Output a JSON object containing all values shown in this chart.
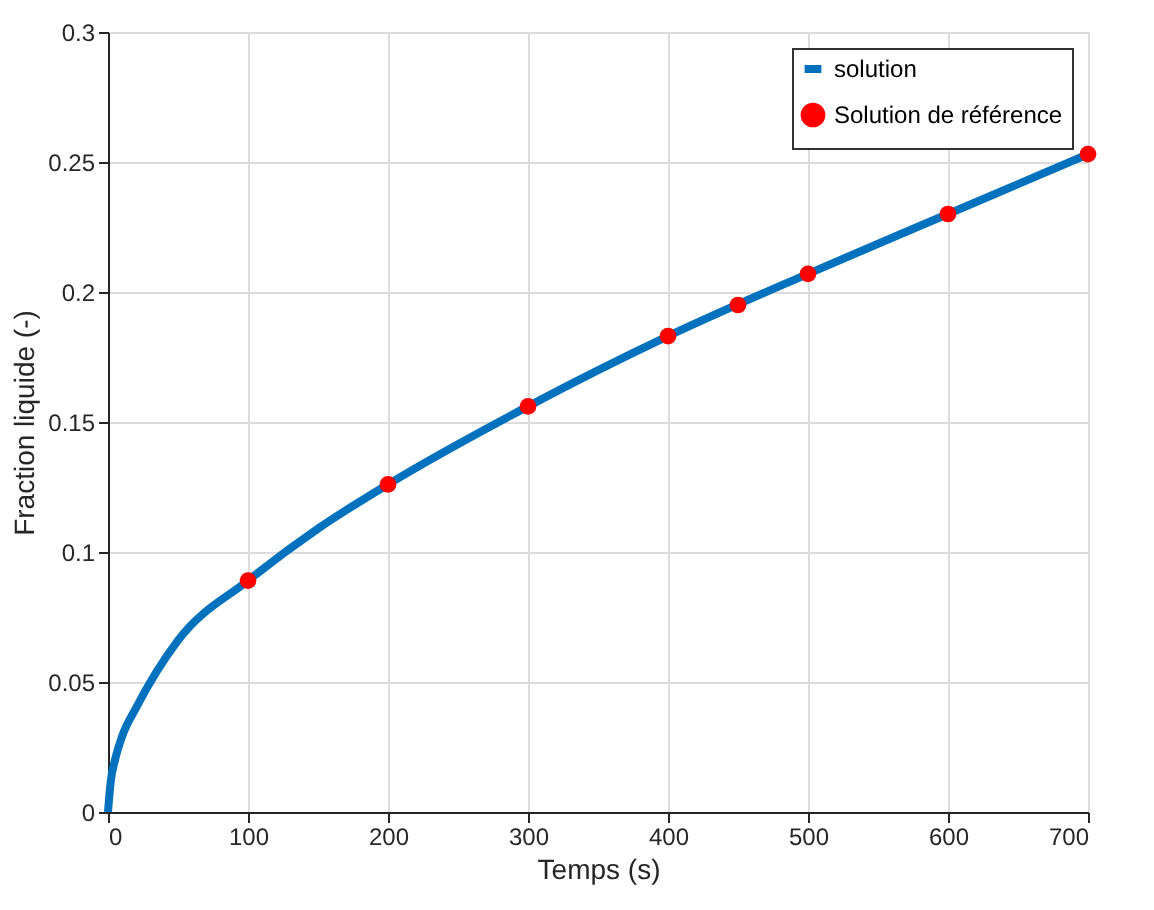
{
  "chart_data": {
    "type": "line",
    "xlabel": "Temps (s)",
    "ylabel": "Fraction liquide (-)",
    "xlim": [
      0,
      700
    ],
    "ylim": [
      0,
      0.3
    ],
    "xticks": [
      0,
      100,
      200,
      300,
      400,
      500,
      600,
      700
    ],
    "yticks": [
      0,
      0.05,
      0.1,
      0.15,
      0.2,
      0.25,
      0.3
    ],
    "grid": true,
    "legend": "top right",
    "series": [
      {
        "name": "solution",
        "color": "#0072bd",
        "line_style": "solid",
        "marker": "none",
        "x": [
          0,
          2,
          5,
          10,
          20,
          50,
          100,
          150,
          200,
          300,
          400,
          500,
          600,
          700
        ],
        "values": [
          0,
          0.012,
          0.02,
          0.029,
          0.04,
          0.066,
          0.089,
          0.109,
          0.126,
          0.156,
          0.183,
          0.207,
          0.23,
          0.253
        ]
      },
      {
        "name": "Solution de référence",
        "type": "scatter",
        "color": "#ff0000",
        "marker": "circle",
        "x": [
          100,
          200,
          300,
          400,
          450,
          500,
          600,
          700
        ],
        "values": [
          0.089,
          0.126,
          0.156,
          0.183,
          0.195,
          0.207,
          0.23,
          0.253
        ]
      }
    ]
  }
}
